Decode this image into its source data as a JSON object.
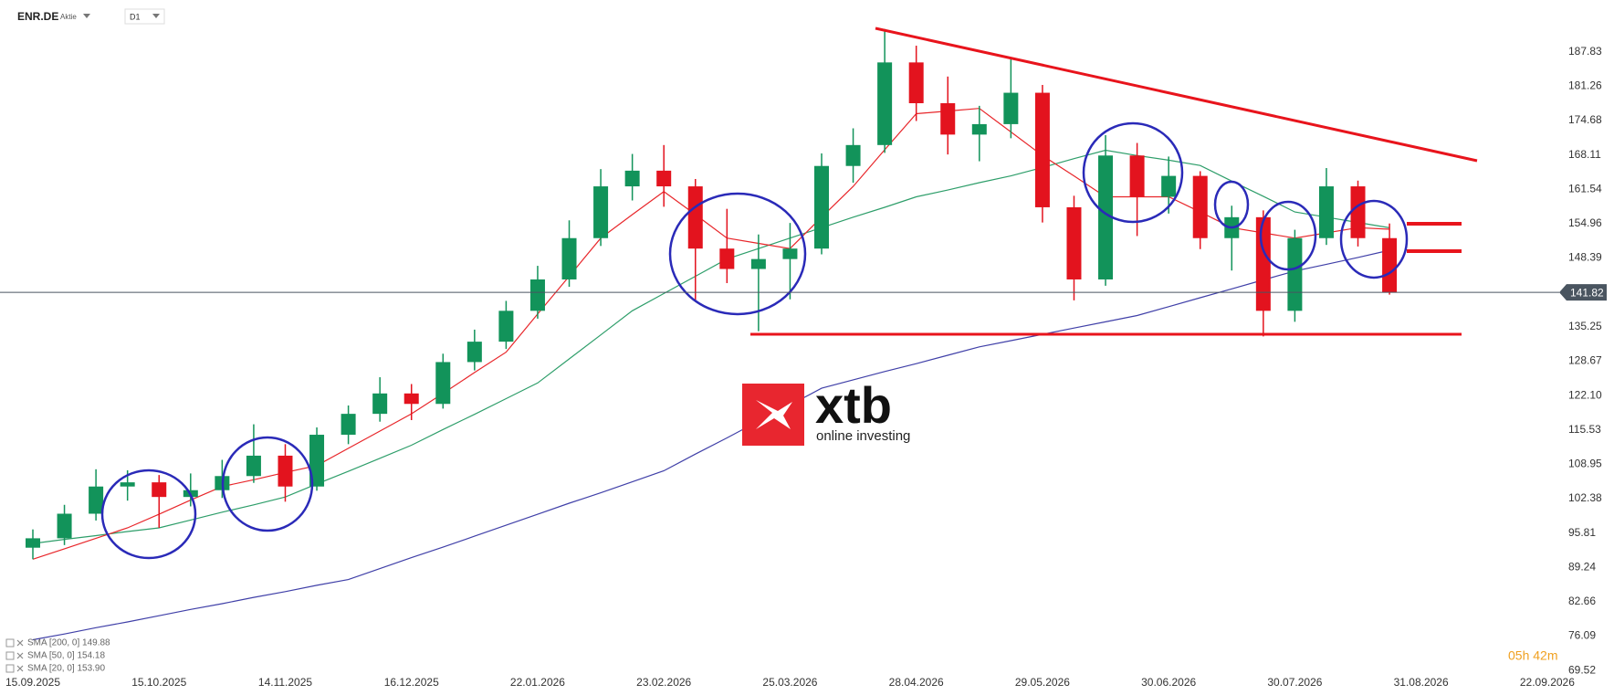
{
  "chart_data": {
    "type": "candlestick",
    "symbol": "ENR.DE",
    "instrument_type": "Aktie",
    "timeframe": "D1",
    "logo_text": "xtb",
    "logo_tagline": "online investing",
    "timer": "05h 42m",
    "last_price": 141.82,
    "categories": [
      "15.09.2025",
      null,
      null,
      null,
      "15.10.2025",
      null,
      null,
      null,
      "14.11.2025",
      null,
      null,
      null,
      "16.12.2025",
      null,
      null,
      null,
      "22.01.2026",
      null,
      null,
      null,
      "23.02.2026",
      null,
      null,
      null,
      "25.03.2026",
      null,
      null,
      null,
      "28.04.2026",
      null,
      null,
      null,
      "29.05.2026",
      null,
      null,
      null,
      "30.06.2026",
      null,
      null,
      null,
      "30.07.2026",
      null,
      null,
      null,
      "31.08.2026",
      null,
      null,
      null,
      "22.09.2026"
    ],
    "open": [
      93.0,
      94.8,
      99.5,
      104.7,
      105.5,
      102.7,
      104.0,
      106.7,
      110.6,
      104.7,
      114.6,
      118.6,
      122.5,
      120.5,
      128.5,
      132.4,
      138.3,
      144.3,
      152.2,
      162.1,
      165.1,
      162.1,
      150.2,
      146.3,
      148.2,
      150.2,
      166.0,
      170.0,
      185.8,
      178.0,
      172.0,
      174.0,
      180.0,
      158.1,
      144.3,
      168.0,
      160.1,
      164.1,
      152.2,
      156.2,
      138.3,
      152.2,
      162.1,
      152.2,
      null,
      null,
      null,
      null,
      null
    ],
    "high": [
      96.5,
      101.2,
      108.0,
      107.8,
      106.9,
      107.2,
      109.8,
      116.6,
      112.8,
      116.0,
      120.2,
      125.6,
      124.3,
      130.1,
      134.7,
      140.2,
      146.9,
      155.6,
      165.4,
      168.3,
      170.0,
      163.5,
      157.8,
      152.9,
      155.1,
      168.4,
      173.2,
      192.2,
      189.0,
      183.1,
      177.5,
      186.8,
      181.5,
      160.3,
      171.9,
      170.4,
      167.8,
      165.0,
      158.4,
      157.5,
      153.8,
      165.6,
      163.2,
      155.0,
      null,
      null,
      null,
      null,
      null
    ],
    "low": [
      90.8,
      93.5,
      98.2,
      102.0,
      96.8,
      100.9,
      102.5,
      105.4,
      101.8,
      103.9,
      112.8,
      117.1,
      117.4,
      119.6,
      126.9,
      131.0,
      136.8,
      142.9,
      150.7,
      159.4,
      158.2,
      140.0,
      143.6,
      134.4,
      140.5,
      149.1,
      162.8,
      168.5,
      174.6,
      168.2,
      166.9,
      171.3,
      155.2,
      140.3,
      143.1,
      152.6,
      156.9,
      150.1,
      146.0,
      133.4,
      136.2,
      150.9,
      150.6,
      141.4,
      null,
      null,
      null,
      null,
      null
    ],
    "close": [
      94.8,
      99.5,
      104.7,
      105.5,
      102.7,
      104.0,
      106.7,
      110.6,
      104.7,
      114.6,
      118.6,
      122.5,
      120.5,
      128.5,
      132.4,
      138.3,
      144.3,
      152.2,
      162.1,
      165.1,
      162.1,
      150.2,
      146.3,
      148.2,
      150.2,
      166.0,
      170.0,
      185.8,
      178.0,
      172.0,
      174.0,
      180.0,
      158.1,
      144.3,
      168.0,
      160.1,
      164.1,
      152.2,
      156.2,
      138.3,
      152.2,
      162.1,
      152.2,
      141.82,
      null,
      null,
      null,
      null,
      null
    ],
    "up_color": "#12935a",
    "down_color": "#e3131e",
    "series": [
      {
        "name": "SMA [200, 0] 149.88",
        "color": "#4040a8",
        "values": [
          75.4,
          76.5,
          77.7,
          78.8,
          80.0,
          81.2,
          82.3,
          83.5,
          84.6,
          85.8,
          86.9,
          89.0,
          91.1,
          93.1,
          95.2,
          97.3,
          99.4,
          101.5,
          103.5,
          105.6,
          107.7,
          110.9,
          114.0,
          117.2,
          120.3,
          123.5,
          125.1,
          126.7,
          128.2,
          129.8,
          131.4,
          132.6,
          133.8,
          135.0,
          136.2,
          137.4,
          139.1,
          140.8,
          142.5,
          144.2,
          145.9,
          147.2,
          148.5,
          149.88,
          null,
          null,
          null,
          null,
          null
        ]
      },
      {
        "name": "SMA [50, 0] 154.18",
        "color": "#2e9e6a",
        "values": [
          93.8,
          94.6,
          95.3,
          96.1,
          96.8,
          98.3,
          99.8,
          101.2,
          102.7,
          105.2,
          107.6,
          110.1,
          112.6,
          115.6,
          118.5,
          121.5,
          124.5,
          129.1,
          133.7,
          138.3,
          141.6,
          144.9,
          148.2,
          150.2,
          152.2,
          154.2,
          156.2,
          158.1,
          160.1,
          161.4,
          162.8,
          164.1,
          165.7,
          167.4,
          169.0,
          168.0,
          167.1,
          166.1,
          163.1,
          160.2,
          157.2,
          156.2,
          155.2,
          154.18,
          null,
          null,
          null,
          null,
          null
        ]
      },
      {
        "name": "SMA [20, 0] 153.90",
        "color": "#e8262a",
        "values": [
          90.8,
          92.8,
          94.8,
          96.8,
          99.4,
          102.1,
          104.7,
          106.0,
          107.4,
          108.7,
          112.0,
          115.3,
          118.6,
          122.5,
          126.5,
          130.4,
          137.7,
          144.9,
          152.2,
          156.7,
          161.1,
          156.7,
          152.2,
          151.2,
          150.2,
          156.2,
          162.1,
          169.1,
          176.0,
          176.5,
          177.0,
          172.5,
          168.0,
          164.1,
          160.1,
          160.1,
          160.1,
          157.2,
          154.2,
          153.2,
          152.2,
          153.2,
          154.2,
          153.9,
          null,
          null,
          null,
          null,
          null
        ]
      }
    ],
    "ylim": [
      68.5,
      194
    ],
    "yticks": [
      187.83,
      181.26,
      174.68,
      168.11,
      161.54,
      154.96,
      148.39,
      135.25,
      128.67,
      {
        "value": 122.1,
        "label": "122.10"
      },
      115.53,
      108.95,
      102.38,
      95.81,
      89.24,
      82.66,
      76.09,
      69.52
    ],
    "grid": false
  }
}
